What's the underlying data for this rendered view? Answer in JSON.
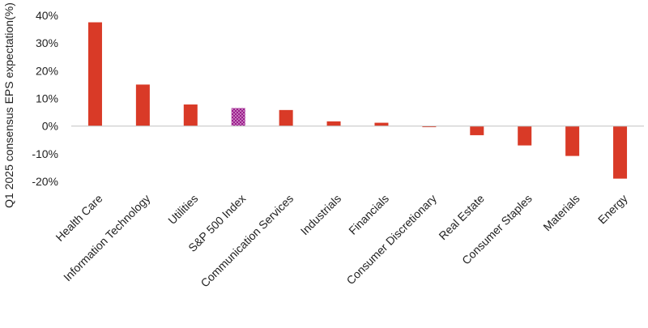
{
  "chart_data": {
    "type": "bar",
    "title": "",
    "xlabel": "",
    "ylabel": "Q1 2025 consensus EPS expectation(%)",
    "ylim": [
      -20,
      40
    ],
    "yticks": [
      -20,
      -10,
      0,
      10,
      20,
      30,
      40
    ],
    "ytick_labels": [
      "-20%",
      "-10%",
      "0%",
      "10%",
      "20%",
      "30%",
      "40%"
    ],
    "grid": false,
    "legend": "none",
    "categories": [
      "Health Care",
      "Information Technology",
      "Utilities",
      "S&P 500 Index",
      "Communication Services",
      "Industrials",
      "Financials",
      "Consumer Discretionary",
      "Real Estate",
      "Consumer Staples",
      "Materials",
      "Energy"
    ],
    "values": [
      37.5,
      15.0,
      7.8,
      6.5,
      5.8,
      1.7,
      1.2,
      -0.4,
      -3.3,
      -7.0,
      -10.8,
      -19.0
    ],
    "highlight_category": "S&P 500 Index",
    "colors": {
      "bar": "#d93a27",
      "highlight": "#9b1f8c",
      "highlight_dot": "#e7b7e0",
      "zero_line": "#c8c8c8",
      "text": "#222222"
    }
  }
}
